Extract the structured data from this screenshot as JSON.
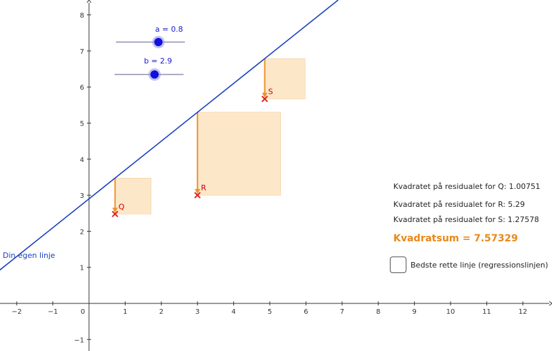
{
  "sliders": [
    {
      "name": "a",
      "label": "a = 0.8",
      "value": 0.8
    },
    {
      "name": "b",
      "label": "b = 2.9",
      "value": 2.9
    }
  ],
  "line": {
    "label": "Din egen linje",
    "color": "#1a3fbf"
  },
  "points": [
    {
      "name": "Q",
      "x": 0.72,
      "y": 2.48
    },
    {
      "name": "R",
      "x": 3.0,
      "y": 3.0
    },
    {
      "name": "S",
      "x": 4.86,
      "y": 5.67
    }
  ],
  "axes": {
    "x_ticks": [
      "−2",
      "−1",
      "0",
      "1",
      "2",
      "3",
      "4",
      "5",
      "6",
      "7",
      "8",
      "9",
      "10",
      "11",
      "12"
    ],
    "y_ticks": [
      "−1",
      "1",
      "2",
      "3",
      "4",
      "5",
      "6",
      "7",
      "8"
    ]
  },
  "residuals": [
    {
      "label": "Kvadratet på residualet for Q: 1.00751"
    },
    {
      "label": "Kvadratet på residualet for R: 5.29"
    },
    {
      "label": "Kvadratet på residualet for S: 1.27578"
    }
  ],
  "sum_label": "Kvadratsum = 7.57329",
  "checkbox": {
    "label": "Bedste rette linje (regressionslinjen)",
    "checked": false
  },
  "colors": {
    "square_fill": "#fde3bf",
    "square_stroke": "#f5c58a",
    "arrow": "#f0902a",
    "point": "#e02020",
    "slider_dot": "#1010dd"
  }
}
